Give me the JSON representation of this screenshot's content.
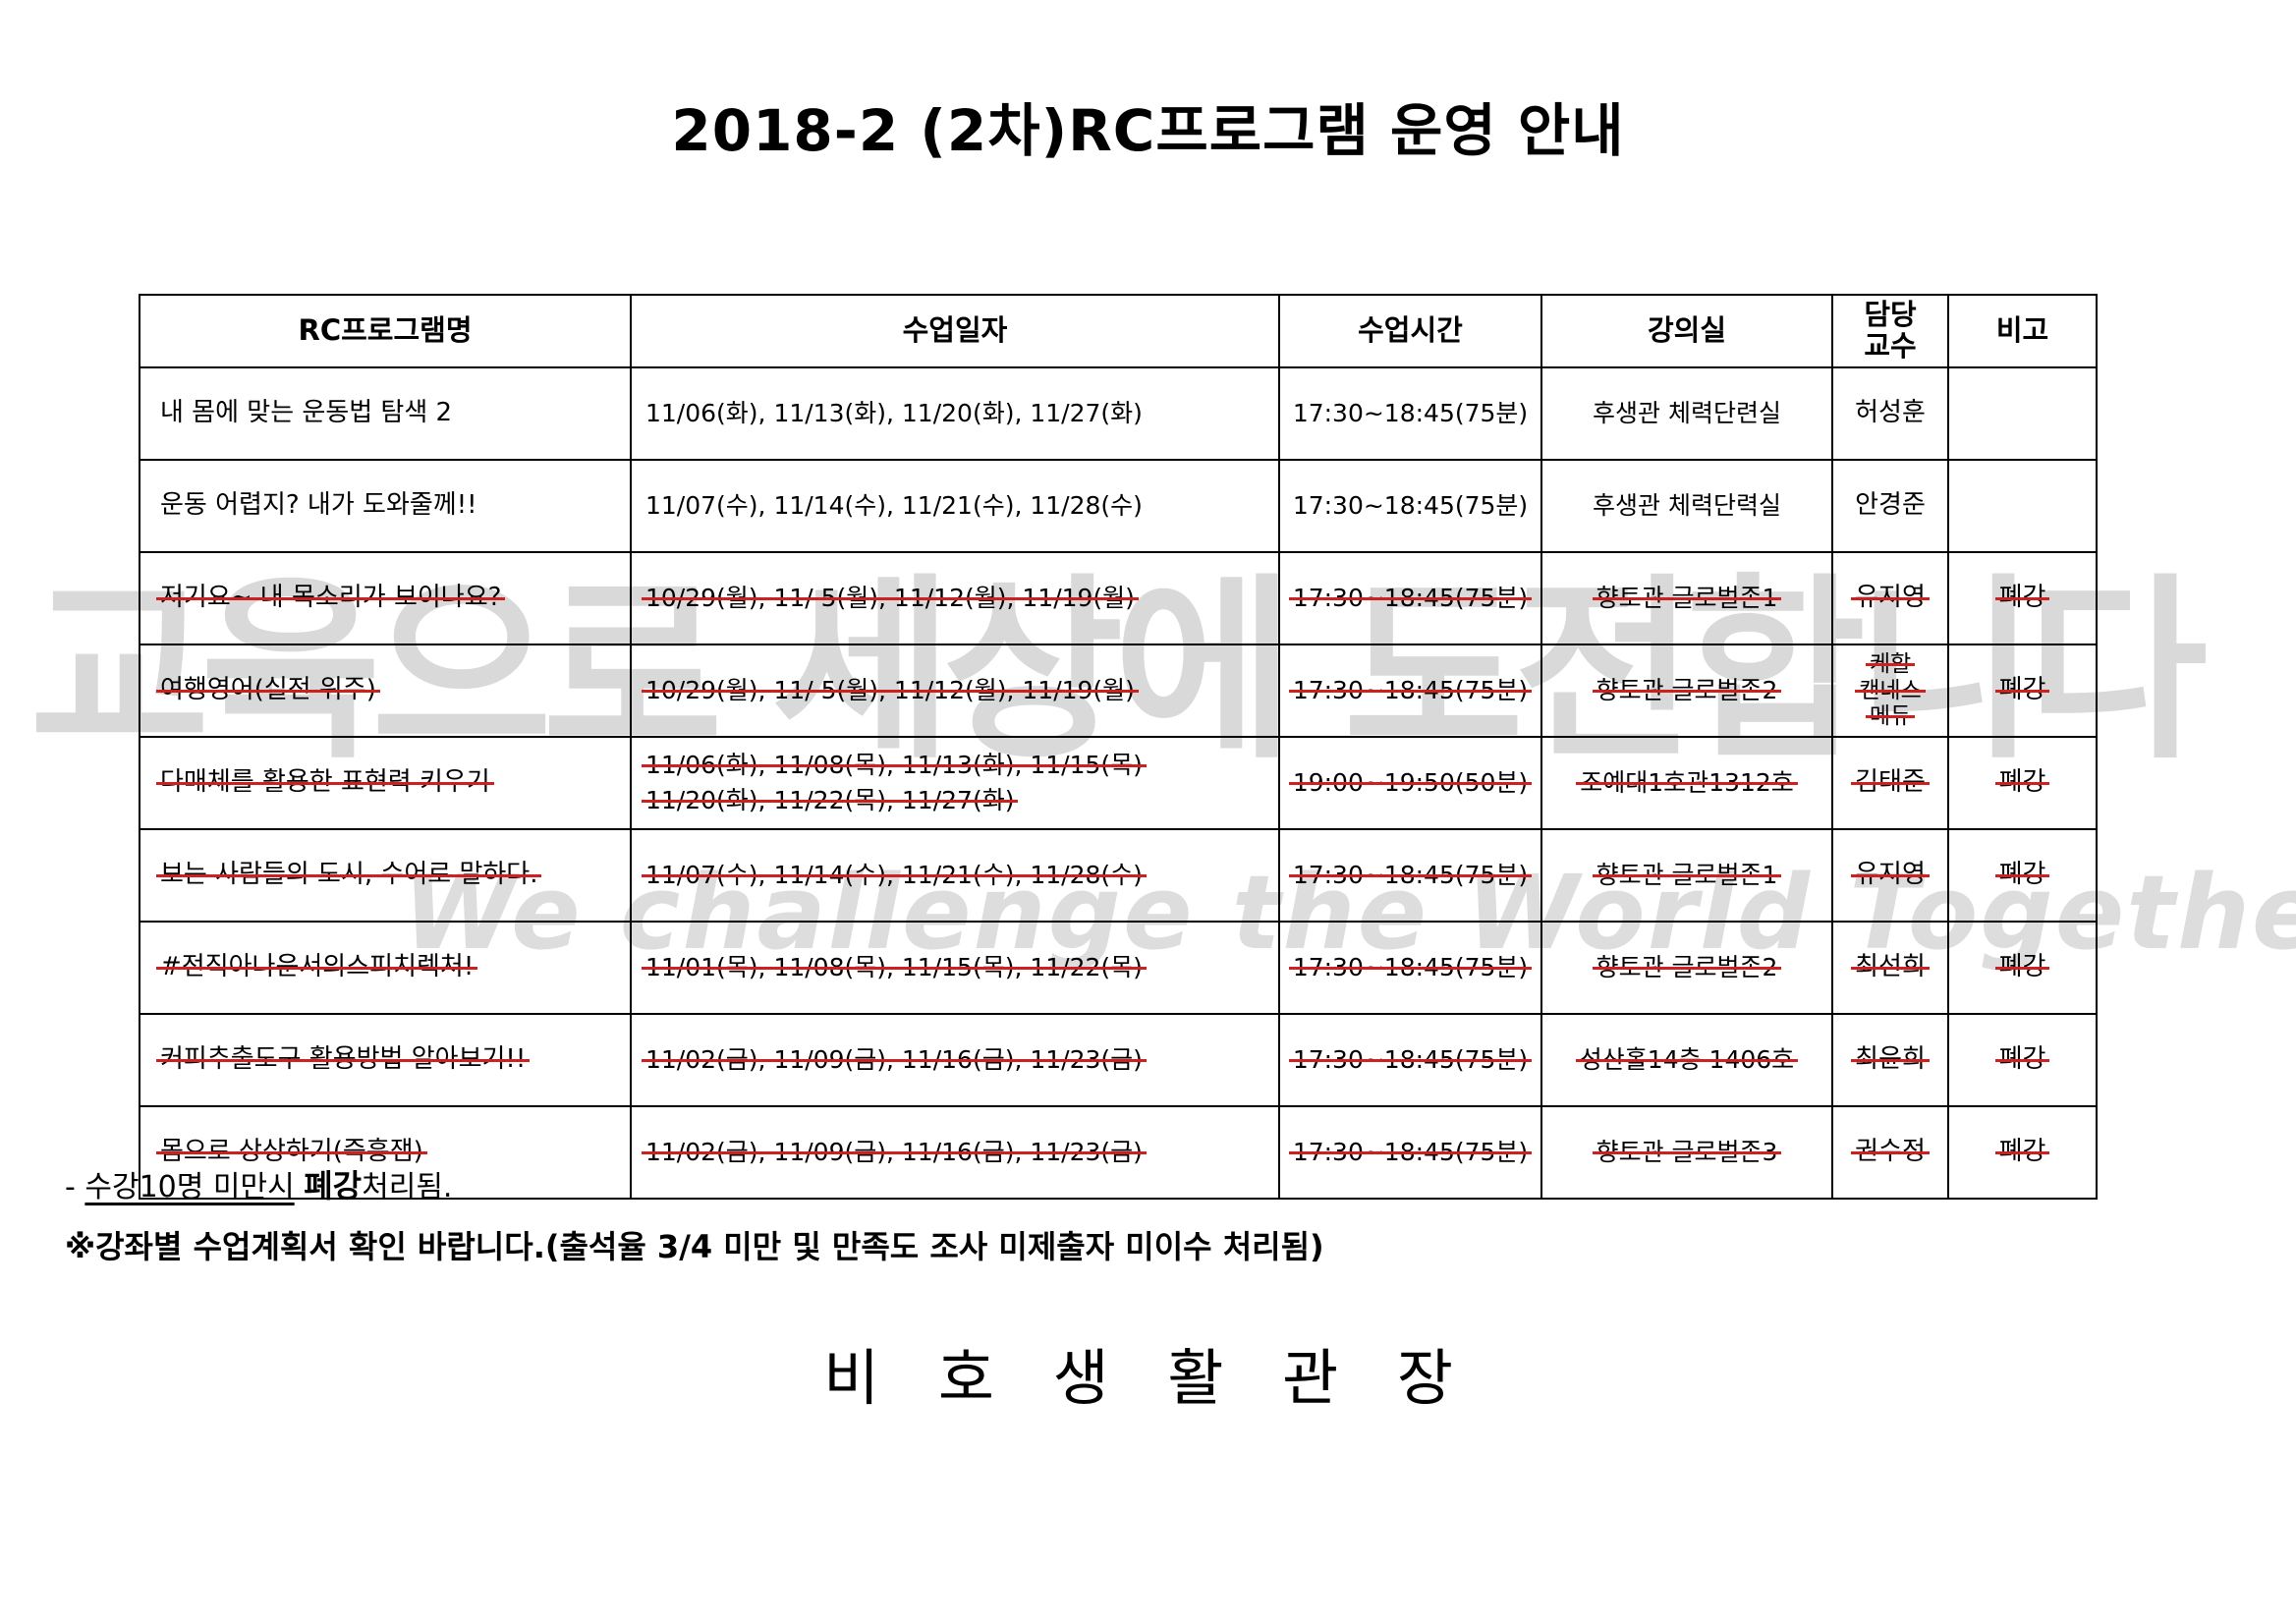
{
  "title": "2018-2 (2차)RC프로그램 운영 안내",
  "watermark": {
    "line1": "교육으로 세상에 도전합니다",
    "line2": "We challenge the World Together"
  },
  "colors": {
    "strike_red": "#cf2020",
    "watermark_gray": "#c6c6c6",
    "text": "#000000",
    "background": "#ffffff"
  },
  "table": {
    "headers": [
      "RC프로그램명",
      "수업일자",
      "수업시간",
      "강의실",
      "담당\n교수",
      "비고"
    ],
    "rows": [
      {
        "name": "내 몸에 맞는 운동법 탐색 2",
        "dates": [
          "11/06(화), 11/13(화), 11/20(화), 11/27(화)"
        ],
        "time": "17:30~18:45(75분)",
        "room": "후생관 체력단련실",
        "professor": [
          "허성훈"
        ],
        "note": "",
        "cancelled": false
      },
      {
        "name": "운동 어렵지? 내가 도와줄께!!",
        "dates": [
          "11/07(수), 11/14(수), 11/21(수), 11/28(수)"
        ],
        "time": "17:30~18:45(75분)",
        "room": "후생관 체력단력실",
        "professor": [
          "안경준"
        ],
        "note": "",
        "cancelled": false
      },
      {
        "name": "저기요~ 내 목소리가 보이나요?",
        "dates": [
          "10/29(월), 11/ 5(월), 11/12(월), 11/19(월)"
        ],
        "time": "17:30~18:45(75분)",
        "room": "향토관 글로벌존1",
        "professor": [
          "유지영"
        ],
        "note": "폐강",
        "cancelled": true
      },
      {
        "name": "여행영어(실전 위주)",
        "dates": [
          "10/29(월), 11/ 5(월), 11/12(월), 11/19(월)"
        ],
        "time": "17:30~18:45(75분)",
        "room": "향토관 글로벌존2",
        "professor": [
          "케할",
          "캔네스",
          "메듀"
        ],
        "note": "폐강",
        "cancelled": true
      },
      {
        "name": "다매체를 활용한 표현력 키우기",
        "dates": [
          "11/06(화), 11/08(목), 11/13(화), 11/15(목)",
          "11/20(화), 11/22(목), 11/27(화)"
        ],
        "time": "19:00~19:50(50분)",
        "room": "조예대1호관1312호",
        "professor": [
          "김태준"
        ],
        "note": "폐강",
        "cancelled": true
      },
      {
        "name": "보는 사람들의 도시, 수어로 말하다.",
        "dates": [
          "11/07(수), 11/14(수), 11/21(수), 11/28(수)"
        ],
        "time": "17:30~18:45(75분)",
        "room": "향토관 글로벌존1",
        "professor": [
          "유지영"
        ],
        "note": "폐강",
        "cancelled": true
      },
      {
        "name": "#전직아나운서의스피치렉처!",
        "dates": [
          "11/01(목), 11/08(목), 11/15(목), 11/22(목)"
        ],
        "time": "17:30~18:45(75분)",
        "room": "향토관 글로벌존2",
        "professor": [
          "최선희"
        ],
        "note": "폐강",
        "cancelled": true
      },
      {
        "name": "커피추출도구 활용방법 알아보기!!",
        "dates": [
          "11/02(금), 11/09(금), 11/16(금), 11/23(금)"
        ],
        "time": "17:30~18:45(75분)",
        "room": "성산홀14층 1406호",
        "professor": [
          "최윤희"
        ],
        "note": "폐강",
        "cancelled": true
      },
      {
        "name": "몸으로 상상하기(즉흥잼)",
        "dates": [
          "11/02(금), 11/09(금), 11/16(금), 11/23(금)"
        ],
        "time": "17:30~18:45(75분)",
        "room": "향토관 글로벌존3",
        "professor": [
          "권수정"
        ],
        "note": "폐강",
        "cancelled": true
      }
    ]
  },
  "notes": {
    "note1": {
      "dash": "- ",
      "underlined": "수강10명 미만시",
      "space": " ",
      "bold": "폐강",
      "rest": "처리됨."
    },
    "note2": "※강좌별 수업계획서 확인 바랍니다.(출석율 3/4 미만 및 만족도 조사 미제출자 미이수 처리됨)"
  },
  "signature": "비 호 생 활 관 장"
}
